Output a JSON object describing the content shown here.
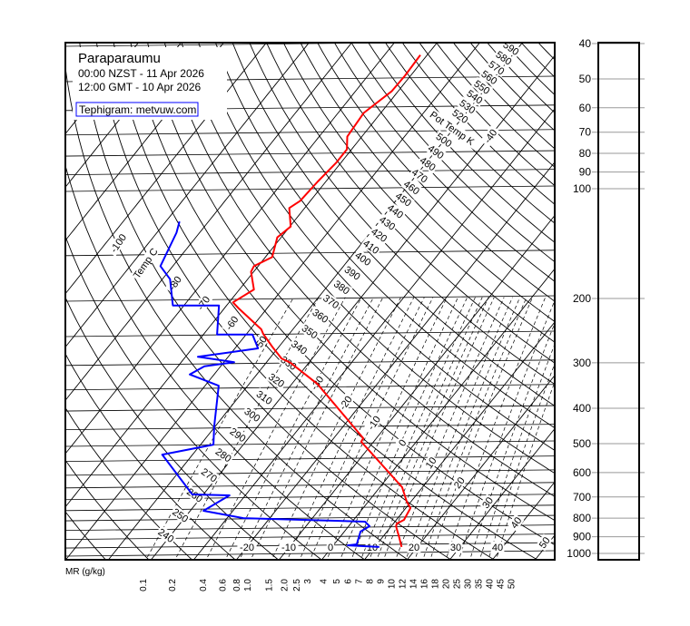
{
  "chart_data": {
    "type": "line",
    "diagram": "tephigram",
    "title": "Paraparaumu",
    "subtitle_local": "00:00 NZST - 11 Apr 2026",
    "subtitle_utc": "12:00 GMT - 10 Apr 2026",
    "credit": "Tephigram: metvuw.com",
    "temp_axis_label": "Temp C",
    "theta_axis_label": "Pot Temp K",
    "mr_axis_label": "MR (g/kg)",
    "pressure_ticks": [
      40,
      50,
      60,
      70,
      80,
      90,
      100,
      200,
      300,
      400,
      500,
      600,
      700,
      800,
      900,
      1000
    ],
    "mixing_ratio_labels": [
      "0.1",
      "0.2",
      "0.4",
      "0.6",
      "0.8",
      "1.0",
      "1.5",
      "2.0",
      "2.5",
      "3",
      "4",
      "5",
      "6",
      "7",
      "8",
      "9",
      "10",
      "12",
      "14",
      "16",
      "18",
      "20",
      "25",
      "30",
      "35",
      "40",
      "45",
      "50"
    ],
    "isotherm_labels": [
      "-100",
      "",
      "-80",
      "-70",
      "-60",
      "-50",
      "-40",
      "-30",
      "-20",
      "-10",
      "0",
      "10",
      "20",
      "30",
      "40",
      "50"
    ],
    "bottom_temp_labels": [
      "-20",
      "-10",
      "0",
      "10",
      "20",
      "30",
      "40"
    ],
    "theta_labels": [
      "240",
      "250",
      "260",
      "270",
      "280",
      "290",
      "300",
      "310",
      "320",
      "330",
      "340",
      "350",
      "360",
      "370",
      "380",
      "390",
      "400",
      "410",
      "420",
      "430",
      "440",
      "450",
      "460",
      "470",
      "480",
      "490",
      "500",
      "",
      "520",
      "530",
      "540",
      "550",
      "560",
      "570",
      "580",
      "590"
    ],
    "colors": {
      "temperature": "#ff0000",
      "dewpoint": "#0000ff",
      "grid": "#000000",
      "credit_box": "#0000ff"
    },
    "series": [
      {
        "role": "temperature",
        "unit_x": "C",
        "unit_y": "hPa",
        "points": [
          [
            960,
            16.3
          ],
          [
            907,
            14.1
          ],
          [
            842,
            11.1
          ],
          [
            828,
            10.8
          ],
          [
            809,
            11.8
          ],
          [
            751,
            11.1
          ],
          [
            721,
            9.0
          ],
          [
            658,
            5.2
          ],
          [
            494,
            -12.9
          ],
          [
            483,
            -13.1
          ],
          [
            343,
            -34.0
          ],
          [
            300,
            -44.3
          ],
          [
            292,
            -47.2
          ],
          [
            271,
            -51.6
          ],
          [
            250,
            -56.1
          ],
          [
            243,
            -57.4
          ],
          [
            213,
            -66.6
          ],
          [
            205,
            -69.1
          ],
          [
            189,
            -66.6
          ],
          [
            169,
            -70.6
          ],
          [
            163,
            -71.0
          ],
          [
            154,
            -68.4
          ],
          [
            136,
            -70.9
          ],
          [
            127,
            -69.8
          ],
          [
            113,
            -73.6
          ],
          [
            108,
            -72.4
          ],
          [
            95.5,
            -71.9
          ],
          [
            85,
            -71.1
          ],
          [
            78,
            -71.1
          ],
          [
            72,
            -73.4
          ],
          [
            62,
            -74.0
          ],
          [
            54,
            -71.5
          ],
          [
            49,
            -71.3
          ],
          [
            43,
            -71.6
          ]
        ]
      },
      {
        "role": "dewpoint",
        "unit_x": "C",
        "unit_y": "hPa",
        "points": [
          [
            960,
            11.1
          ],
          [
            950,
            3.4
          ],
          [
            944,
            5.3
          ],
          [
            871,
            3.8
          ],
          [
            842,
            4.9
          ],
          [
            818,
            3.0
          ],
          [
            800,
            -26.2
          ],
          [
            764,
            -36.9
          ],
          [
            693,
            -33.7
          ],
          [
            689,
            -42.6
          ],
          [
            536,
            -57.1
          ],
          [
            503,
            -47.0
          ],
          [
            449,
            -50.2
          ],
          [
            347,
            -56.8
          ],
          [
            323,
            -65.7
          ],
          [
            307,
            -63.8
          ],
          [
            299,
            -57.6
          ],
          [
            289,
            -67.1
          ],
          [
            274,
            -54.6
          ],
          [
            251,
            -58.5
          ],
          [
            251,
            -66.8
          ],
          [
            209,
            -71.8
          ],
          [
            209,
            -82.6
          ],
          [
            177,
            -88.2
          ],
          [
            163,
            -92.9
          ],
          [
            132,
            -95.4
          ],
          [
            123,
            -96.8
          ]
        ]
      }
    ]
  }
}
